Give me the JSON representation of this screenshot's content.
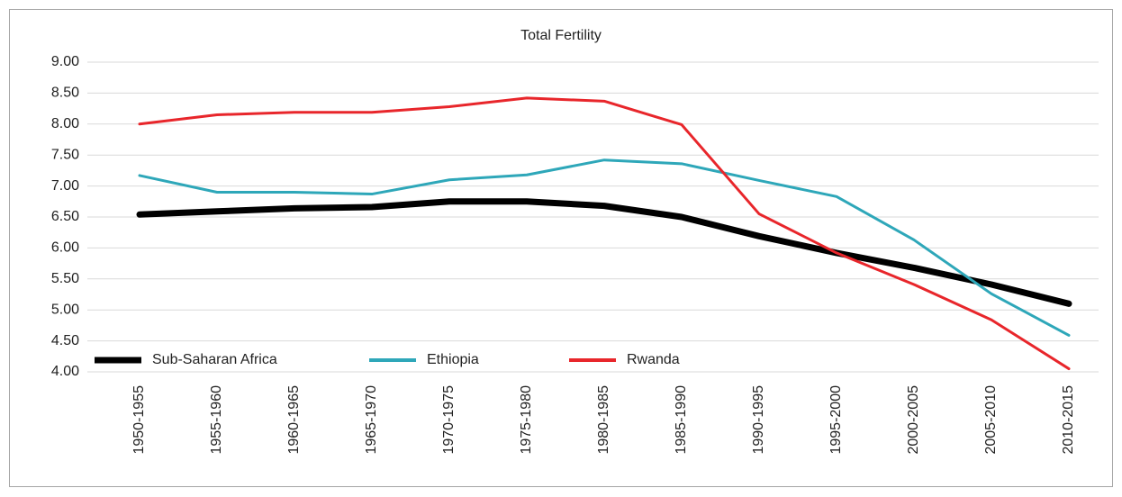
{
  "chart_data": {
    "type": "line",
    "title": "Total Fertility",
    "categories": [
      "1950-1955",
      "1955-1960",
      "1960-1965",
      "1965-1970",
      "1970-1975",
      "1975-1980",
      "1980-1985",
      "1985-1990",
      "1990-1995",
      "1995-2000",
      "2000-2005",
      "2005-2010",
      "2010-2015"
    ],
    "series": [
      {
        "name": "Sub-Saharan Africa",
        "color": "#000000",
        "values": [
          6.54,
          6.59,
          6.64,
          6.66,
          6.75,
          6.75,
          6.68,
          6.5,
          6.19,
          5.92,
          5.68,
          5.41,
          5.1
        ]
      },
      {
        "name": "Ethiopia",
        "color": "#2ea7b9",
        "values": [
          7.17,
          6.9,
          6.9,
          6.87,
          7.1,
          7.18,
          7.42,
          7.36,
          7.09,
          6.83,
          6.13,
          5.26,
          4.59
        ]
      },
      {
        "name": "Rwanda",
        "color": "#e8262b",
        "values": [
          8.0,
          8.15,
          8.19,
          8.19,
          8.28,
          8.42,
          8.37,
          7.99,
          6.55,
          5.92,
          5.41,
          4.84,
          4.05
        ]
      }
    ],
    "ylim": [
      4,
      9
    ],
    "yticks": [
      {
        "value": 4,
        "label": "4.00"
      },
      {
        "value": 4.5,
        "label": "4.50"
      },
      {
        "value": 5,
        "label": "5.00"
      },
      {
        "value": 5.5,
        "label": "5.50"
      },
      {
        "value": 6,
        "label": "6.00"
      },
      {
        "value": 6.5,
        "label": "6.50"
      },
      {
        "value": 7,
        "label": "7.00"
      },
      {
        "value": 7.5,
        "label": "7.50"
      },
      {
        "value": 8,
        "label": "8.00"
      },
      {
        "value": 8.5,
        "label": "8.50"
      },
      {
        "value": 9,
        "label": "9.00"
      }
    ],
    "grid": true,
    "legend": "lower left"
  }
}
